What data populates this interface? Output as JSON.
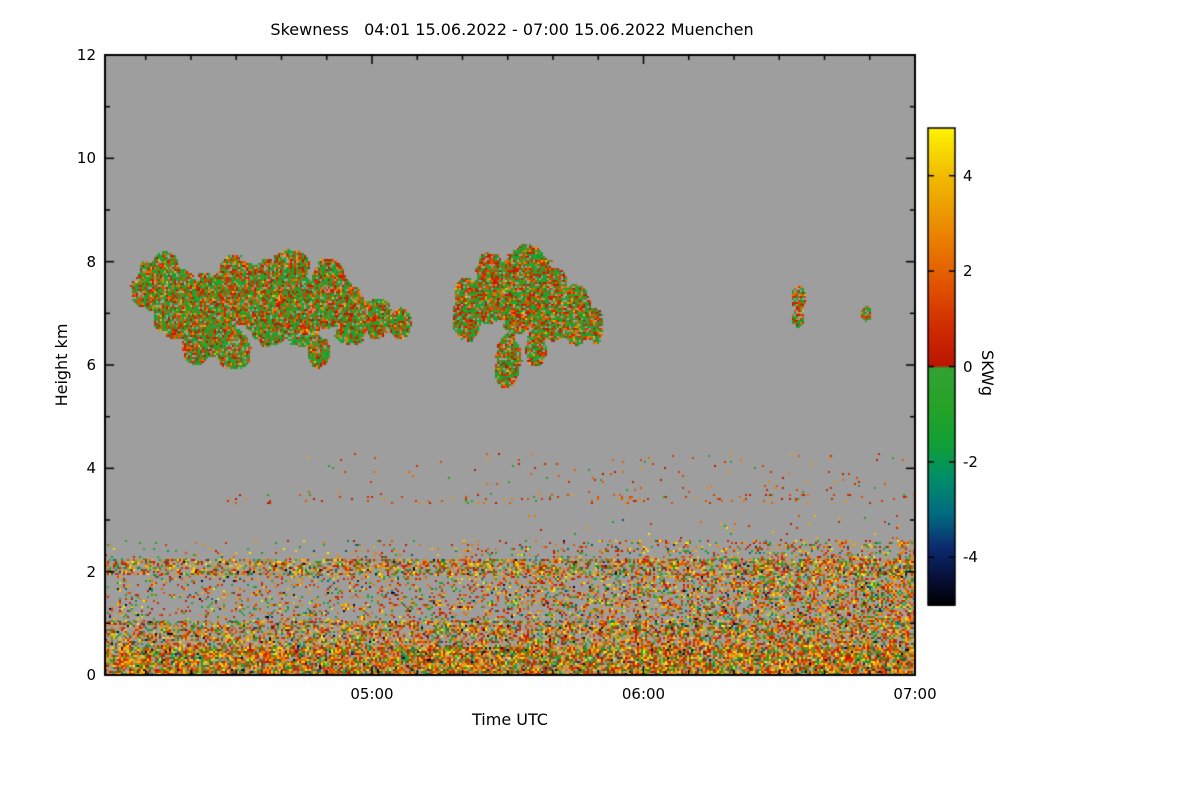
{
  "page": {
    "background": "#ffffff"
  },
  "chart_data": {
    "type": "heatmap",
    "title": "Skewness   04:01 15.06.2022 - 07:00 15.06.2022 Muenchen",
    "xlabel": "Time UTC",
    "ylabel": "Height km",
    "x_start_min": 241,
    "x_end_min": 420,
    "x_ticks": [
      {
        "t": 300,
        "label": "05:00"
      },
      {
        "t": 360,
        "label": "06:00"
      },
      {
        "t": 420,
        "label": "07:00"
      }
    ],
    "x_minor_step_min": 10,
    "ylim": [
      0,
      12
    ],
    "y_ticks": [
      {
        "v": 0,
        "label": "0"
      },
      {
        "v": 2,
        "label": "2"
      },
      {
        "v": 4,
        "label": "4"
      },
      {
        "v": 6,
        "label": "6"
      },
      {
        "v": 8,
        "label": "8"
      },
      {
        "v": 10,
        "label": "10"
      },
      {
        "v": 12,
        "label": "12"
      }
    ],
    "y_minor_step": 1,
    "plot_bg": "#9e9e9e",
    "frame_color": "#000000",
    "text_color": "#000000",
    "colorbar": {
      "label": "SKWg",
      "range": [
        -5,
        5
      ],
      "ticks": [
        {
          "v": 4,
          "label": "4"
        },
        {
          "v": 2,
          "label": "2"
        },
        {
          "v": 0,
          "label": "0"
        },
        {
          "v": -2,
          "label": "-2"
        },
        {
          "v": -4,
          "label": "-4"
        }
      ],
      "stops": [
        [
          -5,
          "#000000"
        ],
        [
          -4.4,
          "#07103a"
        ],
        [
          -3.8,
          "#0c2a6e"
        ],
        [
          -3.1,
          "#006a80"
        ],
        [
          -2.3,
          "#008f68"
        ],
        [
          -1.6,
          "#11a035"
        ],
        [
          -0.8,
          "#27a227"
        ],
        [
          -0.03,
          "#32a232"
        ],
        [
          0.03,
          "#bb1600"
        ],
        [
          0.8,
          "#cf2a00"
        ],
        [
          1.6,
          "#df4e00"
        ],
        [
          2.4,
          "#e87300"
        ],
        [
          3.2,
          "#ec9700"
        ],
        [
          4.0,
          "#f1bb00"
        ],
        [
          4.6,
          "#f8dd00"
        ],
        [
          5,
          "#fff200"
        ]
      ]
    },
    "palettes": {
      "bl": [
        [
          -5,
          -3.5,
          0.03
        ],
        [
          -3.5,
          -1.5,
          0.07
        ],
        [
          -1.5,
          -0.05,
          0.17
        ],
        [
          0.05,
          1,
          0.22
        ],
        [
          1,
          2,
          0.16
        ],
        [
          2,
          3.2,
          0.16
        ],
        [
          3.2,
          5,
          0.19
        ]
      ],
      "cloud": [
        [
          -1.8,
          -0.05,
          0.52
        ],
        [
          0.05,
          0.9,
          0.2
        ],
        [
          0.9,
          1.8,
          0.15
        ],
        [
          1.8,
          2.8,
          0.1
        ],
        [
          2.8,
          4.2,
          0.03
        ]
      ],
      "warm": [
        [
          -0.8,
          -0.05,
          0.12
        ],
        [
          0.05,
          1,
          0.3
        ],
        [
          1,
          2,
          0.33
        ],
        [
          2,
          3.5,
          0.25
        ]
      ]
    },
    "regions": [
      {
        "name": "surface-layer",
        "kind": "speckle",
        "palette": "bl",
        "t": [
          241,
          420
        ],
        "h": [
          0,
          0.55
        ],
        "density": [
          0.82,
          0.85
        ],
        "ramp": 1
      },
      {
        "name": "lower-mixed-layer",
        "kind": "speckle",
        "palette": "bl",
        "t": [
          241,
          420
        ],
        "h": [
          0.55,
          1.05
        ],
        "density": [
          0.5,
          0.68
        ],
        "ramp": 1
      },
      {
        "name": "mid-mixed-layer",
        "kind": "speckle",
        "palette": "bl",
        "t": [
          241,
          420
        ],
        "h": [
          1.05,
          1.95
        ],
        "density": [
          0.15,
          0.62
        ],
        "ramp": 1.6
      },
      {
        "name": "bl-top-band",
        "kind": "speckle",
        "palette": "bl",
        "t": [
          241,
          420
        ],
        "h": [
          1.95,
          2.25
        ],
        "density": [
          0.5,
          0.62
        ],
        "ramp": 1
      },
      {
        "name": "bl-overshoot",
        "kind": "speckle",
        "palette": "bl",
        "t": [
          241,
          420
        ],
        "h": [
          2.25,
          2.62
        ],
        "density": [
          0.05,
          0.32
        ],
        "ramp": 2
      },
      {
        "name": "sparse-above-bl",
        "kind": "speckle",
        "palette": "bl",
        "t": [
          330,
          420
        ],
        "h": [
          2.62,
          3.1
        ],
        "density": [
          0.008,
          0.02
        ],
        "ramp": 1
      },
      {
        "name": "elevated-aerosol-line",
        "kind": "speckle",
        "palette": "warm",
        "t": [
          268,
          420
        ],
        "h": [
          3.33,
          3.5
        ],
        "density": [
          0.04,
          0.1
        ],
        "ramp": 1
      },
      {
        "name": "scattered-midlevel",
        "kind": "speckle",
        "palette": "warm",
        "t": [
          285,
          420
        ],
        "h": [
          3.5,
          4.3
        ],
        "density": [
          0.01,
          0.018
        ],
        "ramp": 1
      },
      {
        "name": "cloud-deck-1",
        "kind": "blobs",
        "palette": "cloud",
        "seed": 3,
        "fill": 0.9,
        "blobs": [
          [
            251,
            7.55,
            5,
            0.6
          ],
          [
            257,
            7.2,
            7,
            0.85
          ],
          [
            264,
            7.0,
            8,
            0.95
          ],
          [
            270,
            7.45,
            7,
            0.85
          ],
          [
            269,
            6.35,
            5,
            0.55
          ],
          [
            277,
            7.2,
            8,
            1.0
          ],
          [
            284,
            7.1,
            6,
            0.9
          ],
          [
            290,
            7.35,
            6,
            0.8
          ],
          [
            295,
            6.95,
            5,
            0.65
          ],
          [
            301,
            6.95,
            4,
            0.5
          ],
          [
            306,
            6.8,
            3,
            0.35
          ],
          [
            261,
            6.4,
            4,
            0.45
          ],
          [
            288,
            6.25,
            3,
            0.4
          ],
          [
            254,
            7.9,
            4,
            0.45
          ],
          [
            282,
            7.9,
            5,
            0.5
          ]
        ]
      },
      {
        "name": "cloud-deck-2",
        "kind": "blobs",
        "palette": "cloud",
        "seed": 4,
        "fill": 0.9,
        "blobs": [
          [
            321,
            7.1,
            4,
            0.85
          ],
          [
            326,
            7.5,
            5,
            0.9
          ],
          [
            332,
            7.4,
            6,
            1.05
          ],
          [
            339,
            7.2,
            6,
            0.95
          ],
          [
            345,
            7.05,
            4,
            0.75
          ],
          [
            330,
            6.15,
            3.5,
            0.7
          ],
          [
            329,
            5.95,
            2.5,
            0.45
          ],
          [
            336,
            6.35,
            3,
            0.5
          ],
          [
            349,
            6.8,
            2.5,
            0.4
          ],
          [
            334,
            8.0,
            5,
            0.45
          ]
        ]
      },
      {
        "name": "cloud-remnant-1",
        "kind": "blobs",
        "palette": "cloud",
        "seed": 5,
        "fill": 0.85,
        "blobs": [
          [
            394,
            7.3,
            2,
            0.3
          ],
          [
            394,
            6.95,
            1.6,
            0.25
          ]
        ]
      },
      {
        "name": "cloud-remnant-2",
        "kind": "blobs",
        "palette": "cloud",
        "seed": 6,
        "fill": 0.85,
        "blobs": [
          [
            409,
            7.0,
            1.3,
            0.18
          ]
        ]
      }
    ]
  }
}
